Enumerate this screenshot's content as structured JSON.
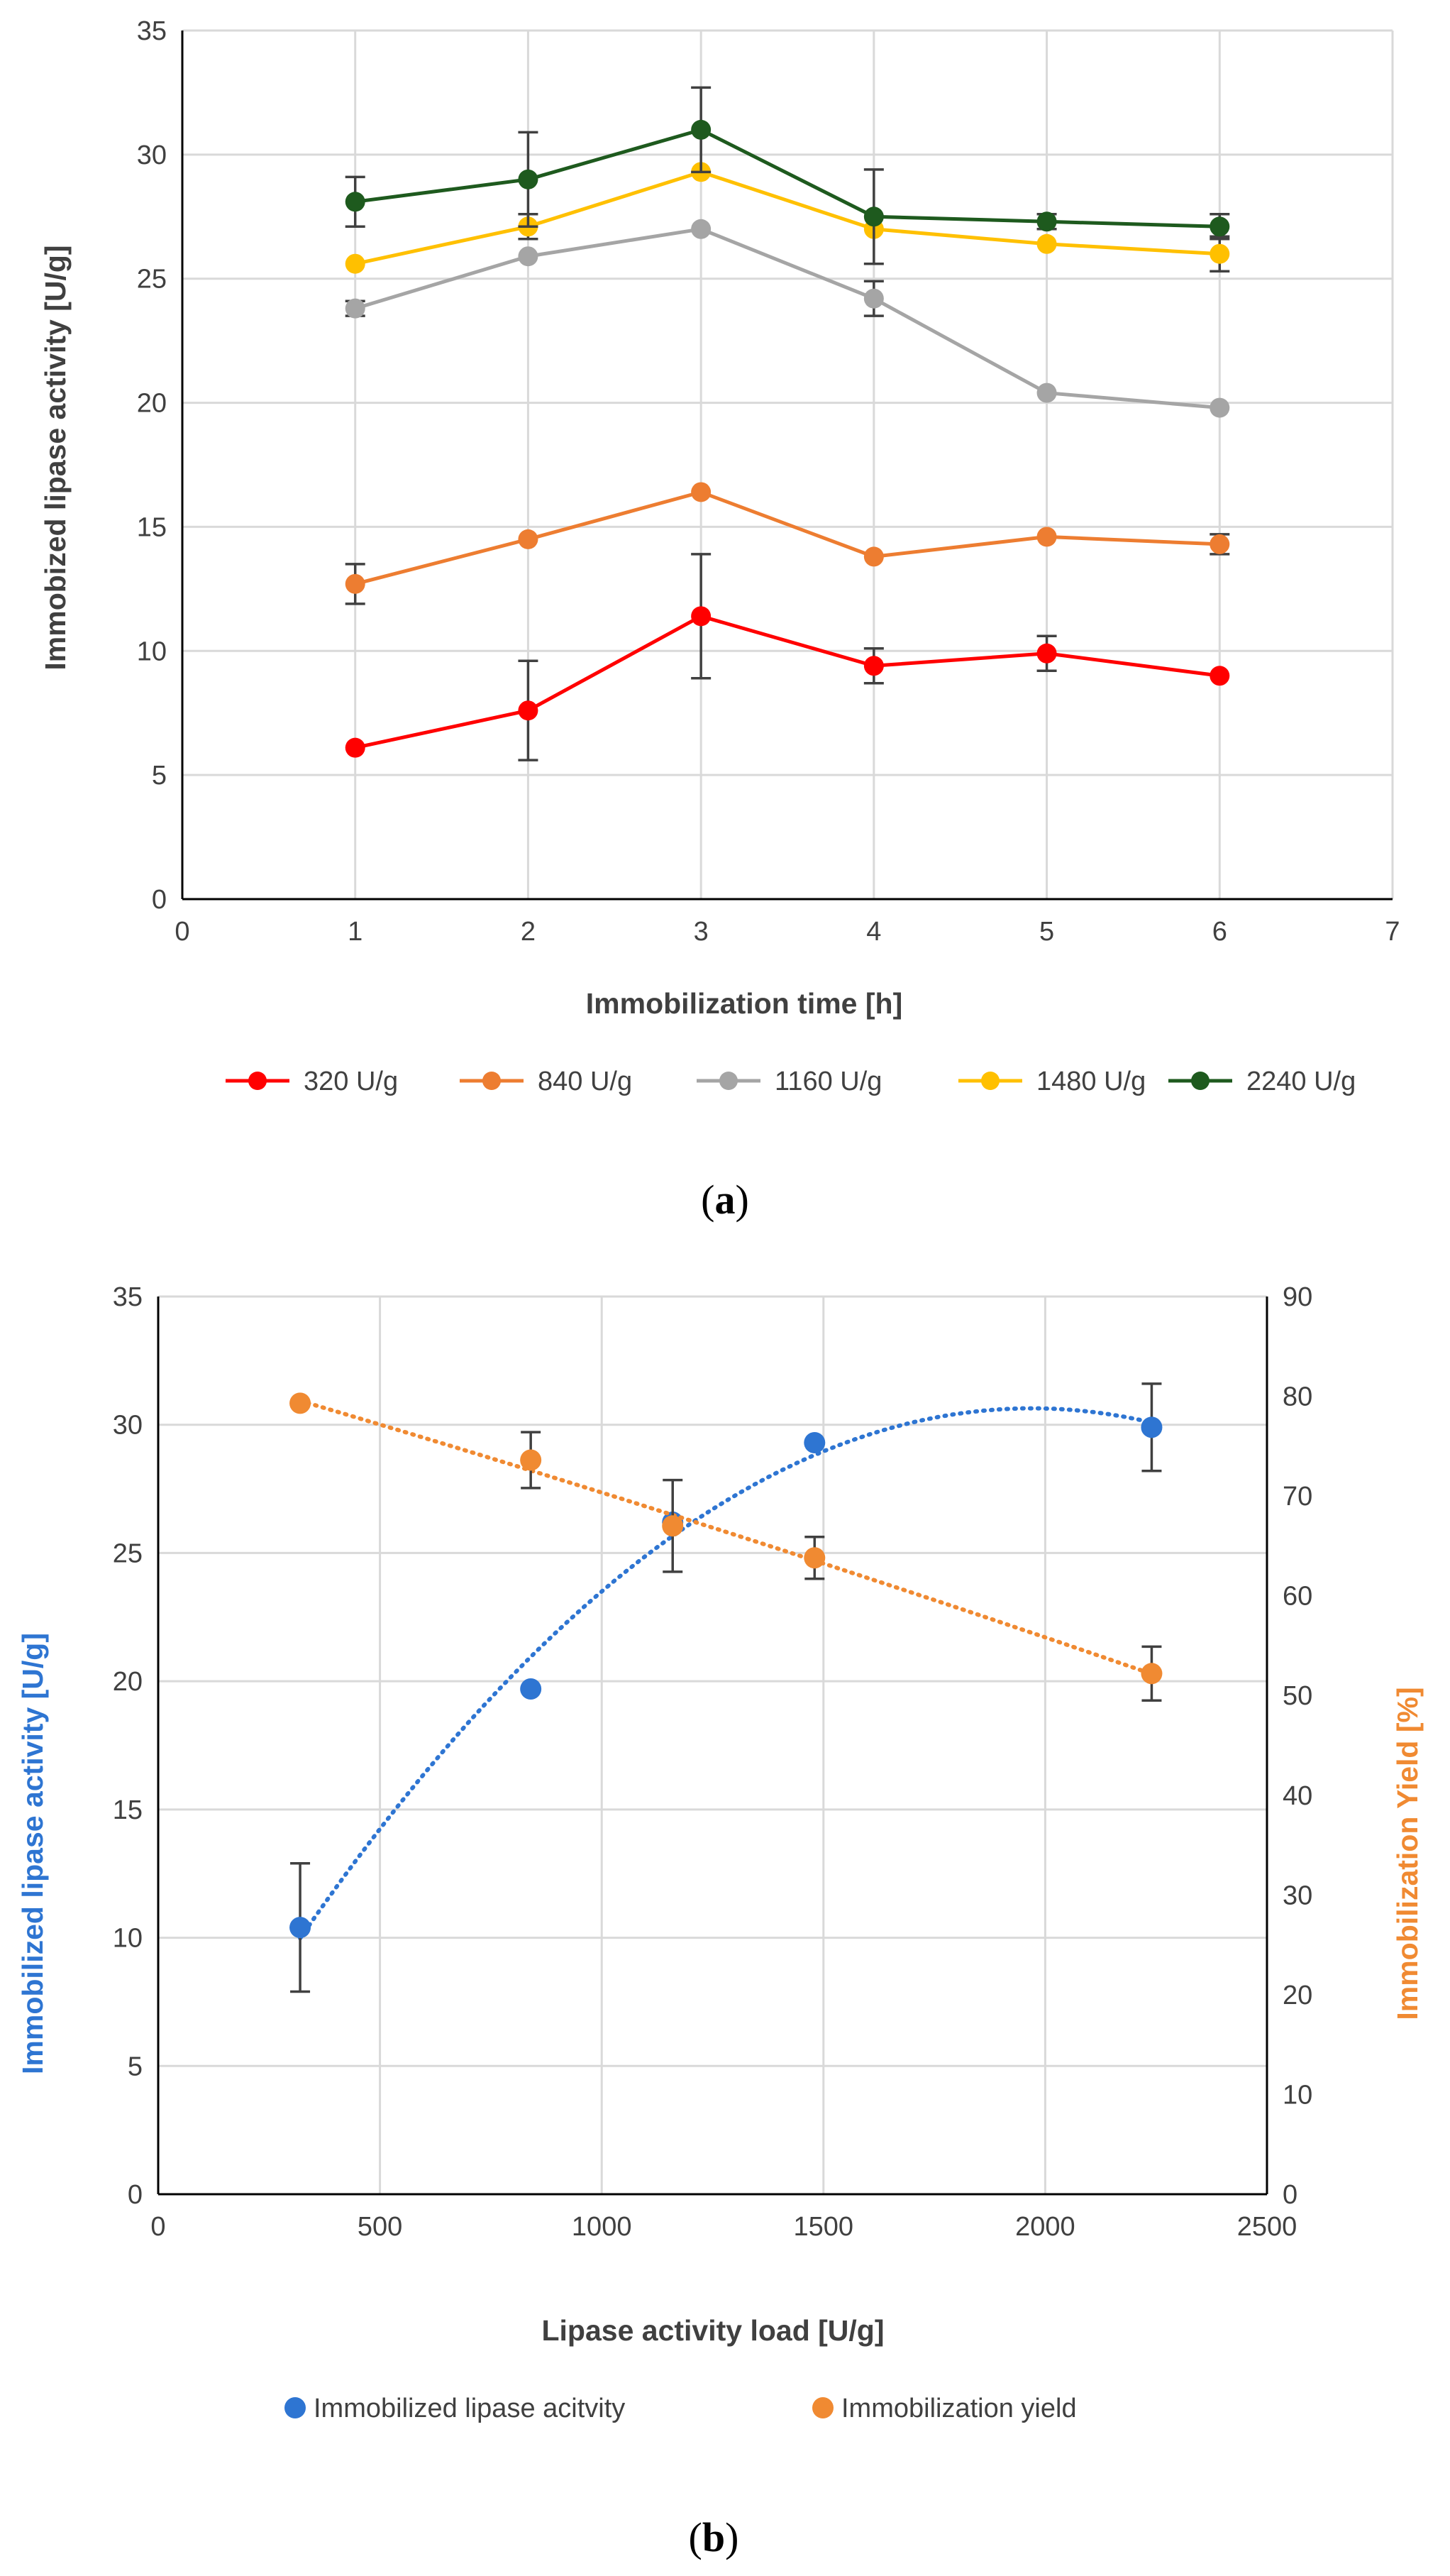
{
  "chart_data": [
    {
      "panel": "a",
      "type": "line",
      "caption_letter": "a",
      "xlabel": "Immobilization time [h]",
      "ylabel": "Immobized lipase activity [U/g]",
      "xlim": [
        0,
        7
      ],
      "ylim": [
        0,
        35
      ],
      "xticks": [
        0,
        1,
        2,
        3,
        4,
        5,
        6,
        7
      ],
      "yticks": [
        0,
        5,
        10,
        15,
        20,
        25,
        30,
        35
      ],
      "grid": true,
      "legend_position": "bottom",
      "x": [
        1,
        2,
        3,
        4,
        5,
        6
      ],
      "series": [
        {
          "name": "320 U/g",
          "color": "#ff0000",
          "values": [
            6.1,
            7.6,
            11.4,
            9.4,
            9.9,
            9.0
          ],
          "errors": [
            0,
            2.0,
            2.5,
            0.7,
            0.7,
            0
          ]
        },
        {
          "name": "840 U/g",
          "color": "#ed7d31",
          "values": [
            12.7,
            14.5,
            16.4,
            13.8,
            14.6,
            14.3
          ],
          "errors": [
            0.8,
            0,
            0,
            0,
            0,
            0.4
          ]
        },
        {
          "name": "1160 U/g",
          "color": "#a5a5a5",
          "values": [
            23.8,
            25.9,
            27.0,
            24.2,
            20.4,
            19.8
          ],
          "errors": [
            0.3,
            0,
            0,
            0.7,
            0,
            0
          ]
        },
        {
          "name": "1480 U/g",
          "color": "#ffc000",
          "values": [
            25.6,
            27.1,
            29.3,
            27.0,
            26.4,
            26.0
          ],
          "errors": [
            0,
            0.5,
            0,
            0,
            0,
            0.7
          ]
        },
        {
          "name": "2240 U/g",
          "color": "#1e5a1e",
          "values": [
            28.1,
            29.0,
            31.0,
            27.5,
            27.3,
            27.1
          ],
          "errors": [
            1.0,
            1.9,
            1.7,
            1.9,
            0.3,
            0.5
          ]
        }
      ]
    },
    {
      "panel": "b",
      "type": "scatter",
      "caption_letter": "b",
      "xlabel": "Lipase activity load [U/g]",
      "ylabel_left": "Immobilized lipase activity [U/g]",
      "ylabel_right": "Immobilization Yield [%]",
      "xlim": [
        0,
        2500
      ],
      "ylim_left": [
        0,
        35
      ],
      "ylim_right": [
        0,
        90
      ],
      "xticks": [
        0,
        500,
        1000,
        1500,
        2000,
        2500
      ],
      "yticks_left": [
        0,
        5,
        10,
        15,
        20,
        25,
        30,
        35
      ],
      "yticks_right": [
        0,
        10,
        20,
        30,
        40,
        50,
        60,
        70,
        80,
        90
      ],
      "grid": true,
      "legend_position": "bottom",
      "x": [
        320,
        840,
        1160,
        1480,
        2240
      ],
      "series": [
        {
          "name": "Immobilized lipase acitvity",
          "axis": "left",
          "color": "#2e75d2",
          "trendline": "polynomial",
          "values": [
            10.4,
            19.7,
            26.2,
            29.3,
            29.9
          ],
          "errors": [
            2.5,
            0,
            0,
            0,
            1.7
          ]
        },
        {
          "name": "Immobilization yield",
          "axis": "right",
          "color": "#f08a32",
          "trendline": "polynomial",
          "values": [
            79.3,
            73.6,
            67.0,
            63.8,
            52.2
          ],
          "errors": [
            0,
            2.8,
            4.6,
            2.1,
            2.7
          ]
        }
      ]
    }
  ]
}
